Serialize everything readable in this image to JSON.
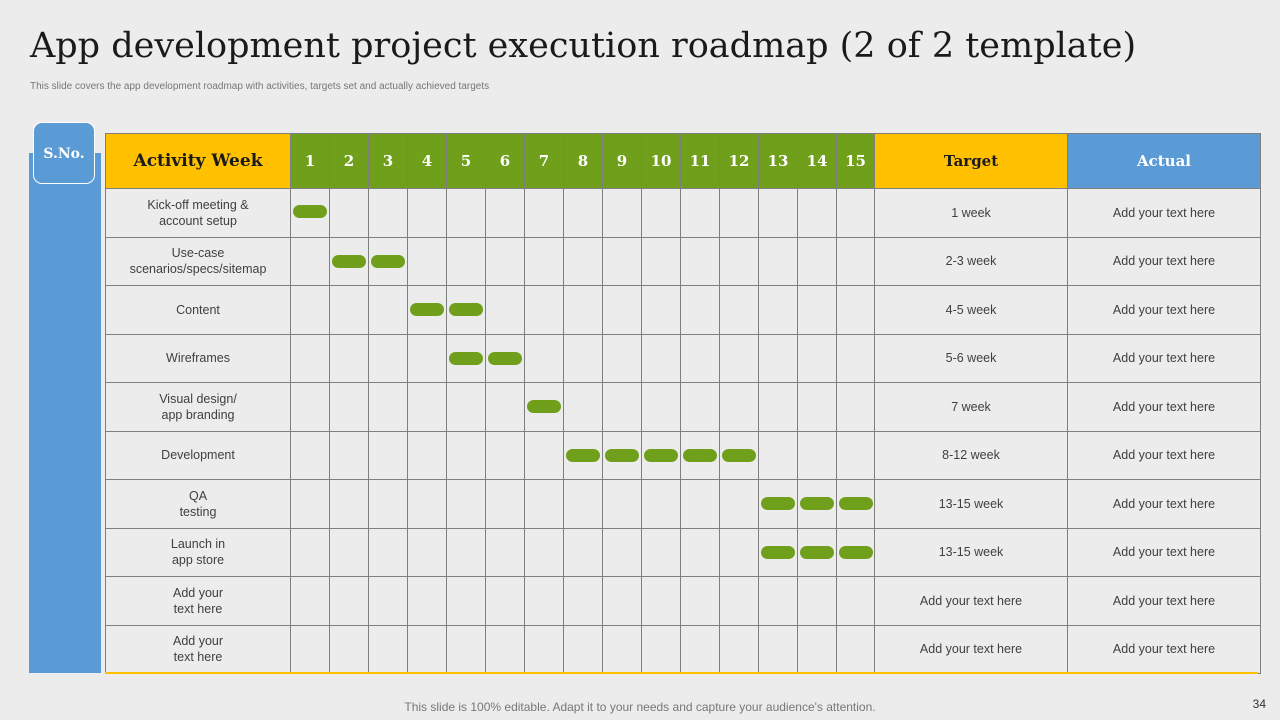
{
  "slide": {
    "title": "App development project execution roadmap (2 of 2 template)",
    "subtitle": "This slide covers the app development roadmap with activities, targets set and actually achieved targets",
    "footer": "This slide is 100% editable. Adapt it to your needs and capture your audience's attention.",
    "page_number": "34"
  },
  "table": {
    "sno_label": "S.No.",
    "activity_header": "Activity Week",
    "weeks": [
      "1",
      "2",
      "3",
      "4",
      "5",
      "6",
      "7",
      "8",
      "9",
      "10",
      "11",
      "12",
      "13",
      "14",
      "15"
    ],
    "target_header": "Target",
    "actual_header": "Actual",
    "rows": [
      {
        "activity": "Kick-off meeting &\naccount setup",
        "weeks": [
          1
        ],
        "target": "1 week",
        "actual": "Add your text here"
      },
      {
        "activity": "Use-case\nscenarios/specs/sitemap",
        "weeks": [
          2,
          3
        ],
        "target": "2-3 week",
        "actual": "Add your text here"
      },
      {
        "activity": "Content",
        "weeks": [
          4,
          5
        ],
        "target": "4-5 week",
        "actual": "Add your text here"
      },
      {
        "activity": "Wireframes",
        "weeks": [
          5,
          6
        ],
        "target": "5-6 week",
        "actual": "Add your text here"
      },
      {
        "activity": "Visual design/\napp branding",
        "weeks": [
          7
        ],
        "target": "7 week",
        "actual": "Add your text here"
      },
      {
        "activity": "Development",
        "weeks": [
          8,
          9,
          10,
          11,
          12
        ],
        "target": "8-12 week",
        "actual": "Add your text here"
      },
      {
        "activity": "QA\ntesting",
        "weeks": [
          13,
          14,
          15
        ],
        "target": "13-15 week",
        "actual": "Add your text here"
      },
      {
        "activity": "Launch in\napp store",
        "weeks": [
          13,
          14,
          15
        ],
        "target": "13-15 week",
        "actual": "Add your text here"
      },
      {
        "activity": "Add your\ntext here",
        "weeks": [],
        "target": "Add your text here",
        "actual": "Add your text here"
      },
      {
        "activity": "Add your\ntext here",
        "weeks": [],
        "target": "Add your text here",
        "actual": "Add your text here"
      }
    ]
  },
  "colors": {
    "green": "#70a01b",
    "yellow": "#ffc000",
    "blue": "#5b9bd5",
    "background": "#ececec"
  }
}
